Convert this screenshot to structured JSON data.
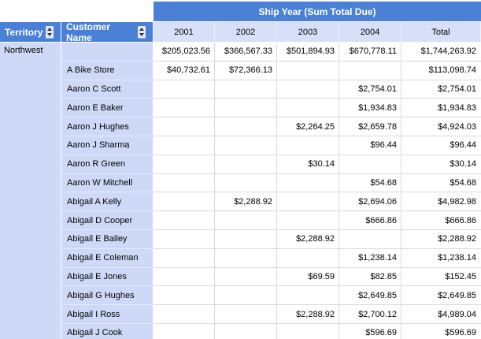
{
  "report": {
    "group_header": "Ship Year (Sum Total Due)",
    "territory_header": "Territory",
    "customer_header": "Customer Name",
    "year_columns": [
      "2001",
      "2002",
      "2003",
      "2004",
      "Total"
    ],
    "territory": "Northwest",
    "rows": [
      {
        "customer": "",
        "values": [
          "$205,023.56",
          "$366,567.33",
          "$501,894.93",
          "$670,778.11",
          "$1,744,263.92"
        ]
      },
      {
        "customer": "A Bike Store",
        "values": [
          "$40,732.61",
          "$72,366.13",
          "",
          "",
          "$113,098.74"
        ]
      },
      {
        "customer": "Aaron C Scott",
        "values": [
          "",
          "",
          "",
          "$2,754.01",
          "$2,754.01"
        ]
      },
      {
        "customer": "Aaron E Baker",
        "values": [
          "",
          "",
          "",
          "$1,934.83",
          "$1,934.83"
        ]
      },
      {
        "customer": "Aaron J Hughes",
        "values": [
          "",
          "",
          "$2,264.25",
          "$2,659.78",
          "$4,924.03"
        ]
      },
      {
        "customer": "Aaron J Sharma",
        "values": [
          "",
          "",
          "",
          "$96.44",
          "$96.44"
        ]
      },
      {
        "customer": "Aaron R Green",
        "values": [
          "",
          "",
          "$30.14",
          "",
          "$30.14"
        ]
      },
      {
        "customer": "Aaron W Mitchell",
        "values": [
          "",
          "",
          "",
          "$54.68",
          "$54.68"
        ]
      },
      {
        "customer": "Abigail A Kelly",
        "values": [
          "",
          "$2,288.92",
          "",
          "$2,694.06",
          "$4,982.98"
        ]
      },
      {
        "customer": "Abigail D Cooper",
        "values": [
          "",
          "",
          "",
          "$666.86",
          "$666.86"
        ]
      },
      {
        "customer": "Abigail E Bailey",
        "values": [
          "",
          "",
          "$2,288.92",
          "",
          "$2,288.92"
        ]
      },
      {
        "customer": "Abigail E Coleman",
        "values": [
          "",
          "",
          "",
          "$1,238.14",
          "$1,238.14"
        ]
      },
      {
        "customer": "Abigail E Jones",
        "values": [
          "",
          "",
          "$69.59",
          "$82.85",
          "$152.45"
        ]
      },
      {
        "customer": "Abigail G Hughes",
        "values": [
          "",
          "",
          "",
          "$2,649.85",
          "$2,649.85"
        ]
      },
      {
        "customer": "Abigail I Ross",
        "values": [
          "",
          "",
          "$2,288.92",
          "$2,700.12",
          "$4,989.04"
        ]
      },
      {
        "customer": "Abigail J Cook",
        "values": [
          "",
          "",
          "",
          "$596.69",
          "$596.69"
        ]
      }
    ],
    "colors": {
      "header_blue": "#4a81d6",
      "left_panel_light_blue": "#cdd9f6",
      "year_row_light_blue": "#d6e0f8",
      "data_gridline_gray": "#d8d8d8",
      "sort_icon_background": "#dee9fc",
      "sort_icon_arrow": "#333333"
    }
  }
}
